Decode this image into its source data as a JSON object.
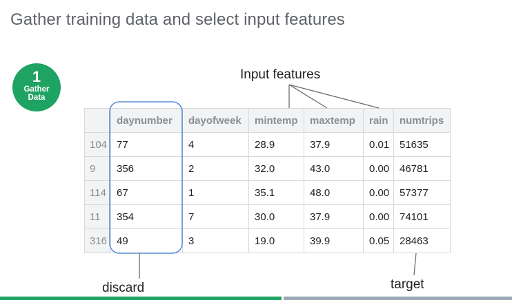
{
  "slide": {
    "title": "Gather training data and select input features",
    "step": {
      "number": "1",
      "label_line1": "Gather",
      "label_line2": "Data"
    }
  },
  "annotations": {
    "input_features": "Input features",
    "discard": "discard",
    "target": "target"
  },
  "table": {
    "columns": [
      "",
      "daynumber",
      "dayofweek",
      "mintemp",
      "maxtemp",
      "rain",
      "numtrips"
    ],
    "rows": [
      [
        "104",
        "77",
        "4",
        "28.9",
        "37.9",
        "0.01",
        "51635"
      ],
      [
        "9",
        "356",
        "2",
        "32.0",
        "43.0",
        "0.00",
        "46781"
      ],
      [
        "114",
        "67",
        "1",
        "35.1",
        "48.0",
        "0.00",
        "57377"
      ],
      [
        "11",
        "354",
        "7",
        "30.0",
        "37.9",
        "0.00",
        "74101"
      ],
      [
        "316",
        "49",
        "3",
        "19.0",
        "39.9",
        "0.05",
        "28463"
      ]
    ]
  },
  "colors": {
    "badge": "#1fa363",
    "highlight_outline": "#5b8fd6",
    "header_bg": "#f1f3f4",
    "progress_done": "#1fa363",
    "progress_rest": "#9aa9b8"
  }
}
